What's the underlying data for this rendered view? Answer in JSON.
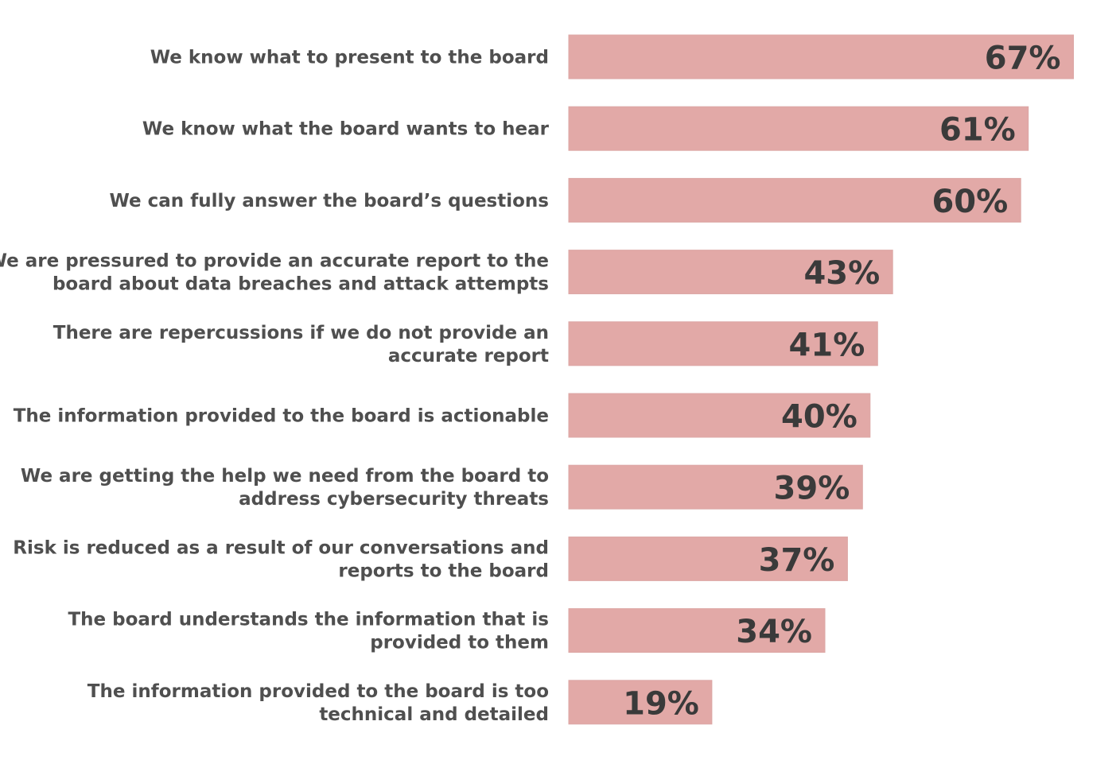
{
  "chart_data": {
    "type": "bar",
    "orientation": "horizontal",
    "categories": [
      "We know what to present to the board",
      "We know what the board wants to hear",
      "We can fully answer the board’s questions",
      "We are pressured to provide an accurate report to the board about data breaches and attack attempts",
      "There are repercussions if we do not provide an accurate report",
      "The information provided to the board is actionable",
      "We are getting the help we need from the board to address cybersecurity threats",
      "Risk is reduced as a result of our conversations and reports to the board",
      "The board understands the information that is provided to them",
      "The information provided to the board is too technical and detailed"
    ],
    "label_lines": [
      [
        "We know what to present to the board"
      ],
      [
        "We know what the board wants to hear"
      ],
      [
        "We can fully answer the board’s questions"
      ],
      [
        "We are pressured to provide an accurate report to the",
        "board about data breaches and attack attempts"
      ],
      [
        "There are repercussions if we do not provide an",
        "accurate report"
      ],
      [
        "The information provided to the board is actionable"
      ],
      [
        "We are getting the help we need from the board to",
        "address cybersecurity threats"
      ],
      [
        "Risk is reduced as a result of our conversations and",
        "reports to the board"
      ],
      [
        "The board understands the information that is",
        "provided to them"
      ],
      [
        "The information provided to the board is too",
        "technical and detailed"
      ]
    ],
    "values": [
      67,
      61,
      60,
      43,
      41,
      40,
      39,
      37,
      34,
      19
    ],
    "value_labels": [
      "67%",
      "61%",
      "60%",
      "43%",
      "41%",
      "40%",
      "39%",
      "37%",
      "34%",
      "19%"
    ],
    "unit": "%",
    "xlim": [
      0,
      100
    ],
    "grid": false,
    "legend": "none",
    "colors": {
      "bar": "#e2a9a7",
      "value_text": "#3a3a3a",
      "category_text": "#4f4f4f"
    }
  }
}
